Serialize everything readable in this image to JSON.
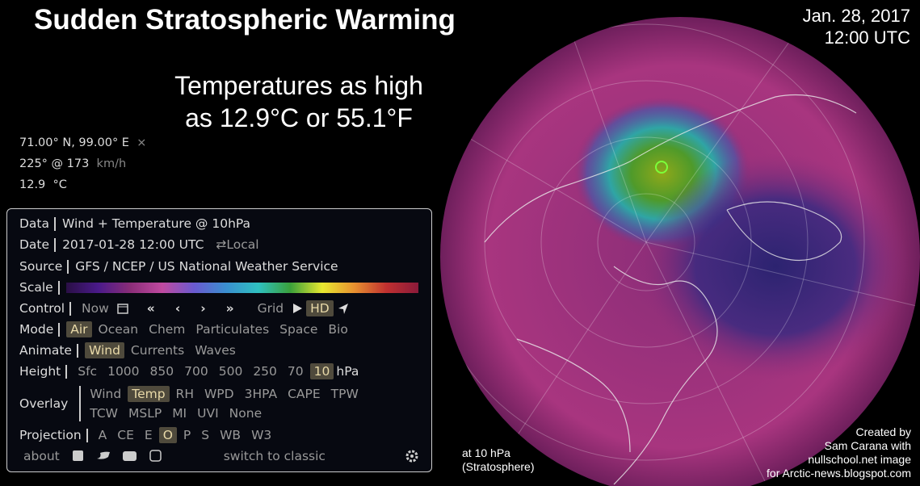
{
  "header": {
    "title": "Sudden Stratospheric Warming",
    "date": "Jan. 28, 2017",
    "time": "12:00 UTC"
  },
  "headline": [
    "Temperatures as high",
    "as 12.9°C or 55.1°F"
  ],
  "spot": {
    "location": "71.00° N, 99.00° E",
    "close": "×",
    "wind": "225° @ 173",
    "wind_unit": "km/h",
    "temp": "12.9",
    "temp_unit": "°C"
  },
  "panel": {
    "data": {
      "label": "Data",
      "value": "Wind + Temperature @ 10hPa"
    },
    "date": {
      "label": "Date",
      "value": "2017-01-28 12:00 UTC",
      "toggle": "⇄Local"
    },
    "source": {
      "label": "Source",
      "value": "GFS / NCEP / US National Weather Service"
    },
    "scale": {
      "label": "Scale"
    },
    "control": {
      "label": "Control",
      "now": "Now",
      "nav": [
        "«",
        "‹",
        "›",
        "»"
      ],
      "grid": "Grid",
      "hd": "HD"
    },
    "mode": {
      "label": "Mode",
      "items": [
        "Air",
        "Ocean",
        "Chem",
        "Particulates",
        "Space",
        "Bio"
      ]
    },
    "animate": {
      "label": "Animate",
      "items": [
        "Wind",
        "Currents",
        "Waves"
      ]
    },
    "height": {
      "label": "Height",
      "items": [
        "Sfc",
        "1000",
        "850",
        "700",
        "500",
        "250",
        "70",
        "10"
      ],
      "unit": "hPa"
    },
    "overlay": {
      "label": "Overlay",
      "items": [
        "Wind",
        "Temp",
        "RH",
        "WPD",
        "3HPA",
        "CAPE",
        "TPW",
        "TCW",
        "MSLP",
        "MI",
        "UVI",
        "None"
      ]
    },
    "projection": {
      "label": "Projection",
      "items": [
        "A",
        "CE",
        "E",
        "O",
        "P",
        "S",
        "WB",
        "W3"
      ]
    },
    "footer": {
      "about": "about",
      "classic": "switch to classic"
    }
  },
  "caption": [
    "at 10 hPa",
    "(Stratosphere)"
  ],
  "credit": [
    "Created by",
    "Sam Carana with",
    "nullschool.net image",
    "for Arctic-news.blogspot.com"
  ]
}
